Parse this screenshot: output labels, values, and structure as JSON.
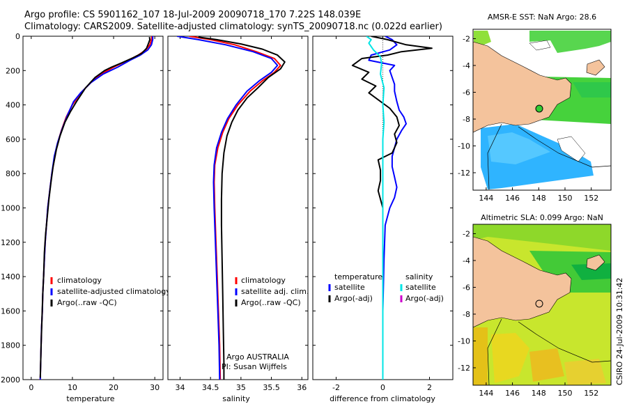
{
  "title_lines": [
    "Argo profile: CS 5901162_107 18-Jul-2009 20090718_170 7.22S 148.039E",
    "Climatology: CARS2009. Satellite-adjusted climatology: synTS_20090718.nc (0.022d earlier)"
  ],
  "side_label": "CSIRO 24-Jul-2009 10:31:42",
  "colors": {
    "climatology": "#ff0000",
    "satellite": "#0000ff",
    "argo": "#000000",
    "salinity_satellite": "#00e5e5",
    "salinity_argo": "#cc00cc",
    "land": "#f4c39c",
    "sst_high": "#46d23c",
    "sst_low": "#2fb4ff",
    "sla_bg": "#c8e62d"
  },
  "chart_data": [
    {
      "type": "line",
      "name": "temperature-profile",
      "xlabel": "temperature",
      "ylabel": "",
      "xlim": [
        -2,
        32
      ],
      "ylim": [
        0,
        2000
      ],
      "y_reversed": true,
      "xticks": [
        0,
        10,
        20,
        30
      ],
      "yticks": [
        0,
        200,
        400,
        600,
        800,
        1000,
        1200,
        1400,
        1600,
        1800,
        2000
      ],
      "legend": [
        {
          "label": "climatology",
          "color": "#ff0000"
        },
        {
          "label": "satellite-adjusted climatology",
          "color": "#0000ff"
        },
        {
          "label": "Argo(..raw -QC)",
          "color": "#000000"
        }
      ],
      "series": [
        {
          "name": "climatology",
          "color": "#ff0000",
          "points": [
            [
              29.3,
              0
            ],
            [
              29.2,
              20
            ],
            [
              28.8,
              50
            ],
            [
              27.8,
              80
            ],
            [
              26.0,
              110
            ],
            [
              23.5,
              140
            ],
            [
              20.0,
              180
            ],
            [
              17.0,
              220
            ],
            [
              14.5,
              270
            ],
            [
              12.0,
              330
            ],
            [
              10.0,
              400
            ],
            [
              8.5,
              470
            ],
            [
              7.3,
              550
            ],
            [
              6.3,
              630
            ],
            [
              5.6,
              720
            ],
            [
              5.0,
              800
            ],
            [
              4.5,
              900
            ],
            [
              4.0,
              1000
            ],
            [
              3.7,
              1100
            ],
            [
              3.4,
              1200
            ],
            [
              3.2,
              1300
            ],
            [
              3.0,
              1400
            ],
            [
              2.8,
              1500
            ],
            [
              2.7,
              1600
            ],
            [
              2.5,
              1700
            ],
            [
              2.4,
              1800
            ],
            [
              2.3,
              1900
            ],
            [
              2.2,
              2000
            ]
          ]
        },
        {
          "name": "satellite",
          "color": "#0000ff",
          "points": [
            [
              29.5,
              0
            ],
            [
              29.5,
              20
            ],
            [
              29.2,
              50
            ],
            [
              28.3,
              80
            ],
            [
              26.5,
              110
            ],
            [
              24.0,
              140
            ],
            [
              21.0,
              180
            ],
            [
              17.5,
              220
            ],
            [
              14.5,
              270
            ],
            [
              12.0,
              330
            ],
            [
              10.3,
              380
            ],
            [
              8.8,
              460
            ],
            [
              7.5,
              540
            ],
            [
              6.4,
              620
            ],
            [
              5.6,
              700
            ],
            [
              5.0,
              800
            ],
            [
              4.5,
              900
            ],
            [
              4.0,
              1000
            ],
            [
              3.7,
              1100
            ],
            [
              3.4,
              1200
            ],
            [
              3.2,
              1300
            ],
            [
              3.0,
              1400
            ],
            [
              2.8,
              1500
            ],
            [
              2.7,
              1600
            ],
            [
              2.5,
              1700
            ],
            [
              2.4,
              1800
            ],
            [
              2.3,
              1900
            ],
            [
              2.2,
              2000
            ]
          ]
        },
        {
          "name": "Argo",
          "color": "#000000",
          "points": [
            [
              28.7,
              5
            ],
            [
              28.8,
              20
            ],
            [
              28.5,
              40
            ],
            [
              28.0,
              70
            ],
            [
              26.8,
              100
            ],
            [
              24.8,
              125
            ],
            [
              22.0,
              155
            ],
            [
              19.5,
              180
            ],
            [
              17.8,
              200
            ],
            [
              15.5,
              240
            ],
            [
              13.2,
              300
            ],
            [
              11.0,
              380
            ],
            [
              9.5,
              440
            ],
            [
              8.2,
              500
            ],
            [
              7.0,
              580
            ],
            [
              6.1,
              660
            ],
            [
              5.3,
              760
            ],
            [
              4.8,
              850
            ],
            [
              4.3,
              950
            ],
            [
              3.9,
              1050
            ],
            [
              3.5,
              1150
            ],
            [
              3.2,
              1260
            ],
            [
              3.0,
              1400
            ],
            [
              2.8,
              1500
            ],
            [
              2.6,
              1650
            ],
            [
              2.4,
              1800
            ],
            [
              2.3,
              1900
            ],
            [
              2.2,
              1990
            ]
          ]
        }
      ]
    },
    {
      "type": "line",
      "name": "salinity-profile",
      "xlabel": "salinity",
      "ylabel": "",
      "xlim": [
        33.8,
        36.1
      ],
      "ylim": [
        0,
        2000
      ],
      "y_reversed": true,
      "xticks": [
        34,
        34.5,
        35,
        35.5,
        36
      ],
      "legend": [
        {
          "label": "climatology",
          "color": "#ff0000"
        },
        {
          "label": "satellite adj. clim.",
          "color": "#0000ff"
        },
        {
          "label": "Argo(..raw -QC)",
          "color": "#000000"
        }
      ],
      "annotations": [
        "Argo AUSTRALIA",
        "PI: Susan Wijffels"
      ],
      "series": [
        {
          "name": "climatology",
          "color": "#ff0000",
          "points": [
            [
              34.15,
              0
            ],
            [
              34.5,
              20
            ],
            [
              34.9,
              50
            ],
            [
              35.25,
              90
            ],
            [
              35.55,
              130
            ],
            [
              35.65,
              170
            ],
            [
              35.55,
              210
            ],
            [
              35.35,
              260
            ],
            [
              35.15,
              320
            ],
            [
              34.95,
              400
            ],
            [
              34.8,
              480
            ],
            [
              34.7,
              560
            ],
            [
              34.62,
              650
            ],
            [
              34.57,
              750
            ],
            [
              34.56,
              850
            ],
            [
              34.57,
              1000
            ],
            [
              34.59,
              1200
            ],
            [
              34.61,
              1400
            ],
            [
              34.63,
              1600
            ],
            [
              34.65,
              1800
            ],
            [
              34.66,
              2000
            ]
          ]
        },
        {
          "name": "satellite",
          "color": "#0000ff",
          "points": [
            [
              33.95,
              0
            ],
            [
              34.3,
              20
            ],
            [
              34.75,
              50
            ],
            [
              35.2,
              90
            ],
            [
              35.5,
              130
            ],
            [
              35.6,
              170
            ],
            [
              35.5,
              210
            ],
            [
              35.3,
              260
            ],
            [
              35.1,
              320
            ],
            [
              34.92,
              400
            ],
            [
              34.78,
              480
            ],
            [
              34.68,
              560
            ],
            [
              34.6,
              650
            ],
            [
              34.56,
              750
            ],
            [
              34.55,
              850
            ],
            [
              34.56,
              1000
            ],
            [
              34.58,
              1200
            ],
            [
              34.6,
              1400
            ],
            [
              34.62,
              1600
            ],
            [
              34.64,
              1800
            ],
            [
              34.65,
              2000
            ]
          ]
        },
        {
          "name": "Argo",
          "color": "#000000",
          "points": [
            [
              34.3,
              5
            ],
            [
              34.6,
              20
            ],
            [
              35.0,
              45
            ],
            [
              35.35,
              75
            ],
            [
              35.6,
              110
            ],
            [
              35.72,
              150
            ],
            [
              35.65,
              190
            ],
            [
              35.45,
              240
            ],
            [
              35.28,
              300
            ],
            [
              35.1,
              360
            ],
            [
              34.95,
              430
            ],
            [
              34.85,
              500
            ],
            [
              34.77,
              580
            ],
            [
              34.72,
              680
            ],
            [
              34.69,
              800
            ],
            [
              34.68,
              950
            ],
            [
              34.68,
              1100
            ],
            [
              34.69,
              1300
            ],
            [
              34.7,
              1500
            ],
            [
              34.71,
              1700
            ],
            [
              34.72,
              1900
            ],
            [
              34.72,
              2000
            ]
          ]
        }
      ]
    },
    {
      "type": "line",
      "name": "difference-profile",
      "xlabel": "difference from climatology",
      "ylabel": "",
      "xlim": [
        -3,
        3
      ],
      "ylim": [
        0,
        2000
      ],
      "y_reversed": true,
      "xticks": [
        -2,
        0,
        2
      ],
      "legend_columns": [
        {
          "heading": "temperature",
          "items": [
            {
              "label": "satellite",
              "color": "#0000ff"
            },
            {
              "label": "Argo(-adj)",
              "color": "#000000"
            }
          ]
        },
        {
          "heading": "salinity",
          "items": [
            {
              "label": "satellite",
              "color": "#00e5e5"
            },
            {
              "label": "Argo(-adj)",
              "color": "#cc00cc"
            }
          ]
        }
      ],
      "series": [
        {
          "name": "temperature satellite",
          "color": "#0000ff",
          "points": [
            [
              0.1,
              0
            ],
            [
              0.4,
              20
            ],
            [
              0.6,
              50
            ],
            [
              0.3,
              80
            ],
            [
              -0.5,
              110
            ],
            [
              -0.6,
              140
            ],
            [
              0.5,
              170
            ],
            [
              0.3,
              200
            ],
            [
              0.4,
              240
            ],
            [
              0.5,
              280
            ],
            [
              0.5,
              320
            ],
            [
              0.6,
              380
            ],
            [
              0.7,
              430
            ],
            [
              0.9,
              470
            ],
            [
              1.0,
              510
            ],
            [
              0.8,
              550
            ],
            [
              0.6,
              600
            ],
            [
              0.5,
              650
            ],
            [
              0.4,
              700
            ],
            [
              0.4,
              760
            ],
            [
              0.5,
              820
            ],
            [
              0.6,
              880
            ],
            [
              0.5,
              940
            ],
            [
              0.3,
              1000
            ],
            [
              0.1,
              1100
            ],
            [
              0.05,
              1300
            ],
            [
              0.0,
              1600
            ],
            [
              0.0,
              2000
            ]
          ]
        },
        {
          "name": "temperature Argo",
          "color": "#000000",
          "points": [
            [
              -0.5,
              0
            ],
            [
              0.2,
              20
            ],
            [
              1.0,
              50
            ],
            [
              2.1,
              70
            ],
            [
              0.8,
              90
            ],
            [
              0.2,
              110
            ],
            [
              -0.9,
              130
            ],
            [
              -1.3,
              170
            ],
            [
              -0.6,
              210
            ],
            [
              -0.9,
              250
            ],
            [
              -0.3,
              290
            ],
            [
              -0.6,
              330
            ],
            [
              -0.2,
              370
            ],
            [
              0.3,
              420
            ],
            [
              0.6,
              470
            ],
            [
              0.7,
              520
            ],
            [
              0.5,
              570
            ],
            [
              0.6,
              620
            ],
            [
              0.4,
              680
            ],
            [
              -0.2,
              720
            ],
            [
              -0.1,
              780
            ],
            [
              -0.1,
              840
            ],
            [
              -0.2,
              900
            ],
            [
              0.0,
              1000
            ],
            [
              0.0,
              1300
            ],
            [
              0.0,
              1600
            ],
            [
              0.0,
              2000
            ]
          ]
        },
        {
          "name": "salinity satellite",
          "color": "#00e5e5",
          "points": [
            [
              -0.7,
              0
            ],
            [
              -0.5,
              20
            ],
            [
              -0.6,
              40
            ],
            [
              -0.4,
              80
            ],
            [
              -0.1,
              120
            ],
            [
              -0.05,
              160
            ],
            [
              -0.1,
              220
            ],
            [
              0.05,
              300
            ],
            [
              0.0,
              400
            ],
            [
              0.05,
              500
            ],
            [
              0.0,
              600
            ],
            [
              0.0,
              800
            ],
            [
              0.0,
              1000
            ],
            [
              0.0,
              1200
            ],
            [
              0.0,
              1500
            ],
            [
              0.0,
              1800
            ],
            [
              0.0,
              2000
            ]
          ]
        }
      ]
    }
  ],
  "maps": [
    {
      "name": "sst-map",
      "title": "AMSR-E SST: NaN Argo: 28.6",
      "xticks": [
        144,
        146,
        148,
        150,
        152
      ],
      "yticks": [
        -2,
        -4,
        -6,
        -8,
        -10,
        -12
      ],
      "xlim": [
        143,
        153.5
      ],
      "ylim": [
        -13.3,
        -1.3
      ],
      "argo_point": [
        148.039,
        -7.22
      ]
    },
    {
      "name": "sla-map",
      "title": "Altimetric SLA: 0.099 Argo: NaN",
      "xticks": [
        144,
        146,
        148,
        150,
        152
      ],
      "yticks": [
        -2,
        -4,
        -6,
        -8,
        -10,
        -12
      ],
      "xlim": [
        143,
        153.5
      ],
      "ylim": [
        -13.3,
        -1.3
      ],
      "argo_point": [
        148.039,
        -7.22
      ]
    }
  ]
}
